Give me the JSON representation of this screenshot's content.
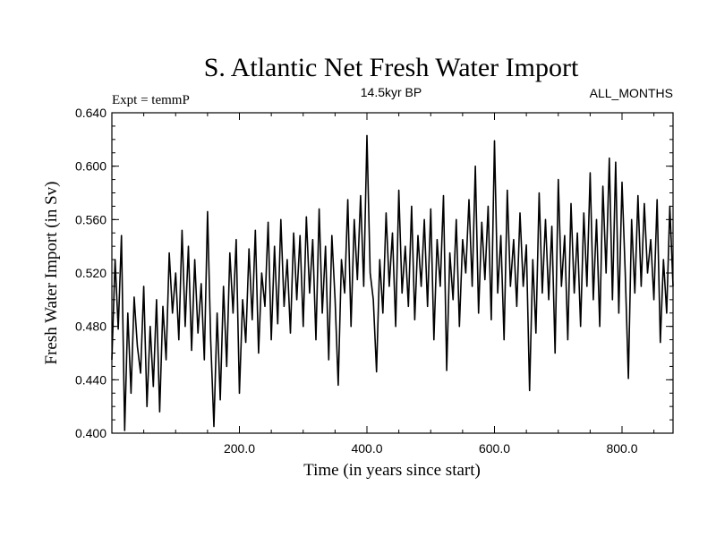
{
  "chart_data": {
    "type": "line",
    "title": "S. Atlantic Net Fresh Water Import",
    "subtitle_left": "Expt = temmP",
    "subtitle_center": "14.5kyr BP",
    "subtitle_right": "ALL_MONTHS",
    "xlabel": "Time (in years since start)",
    "ylabel": "Fresh Water Import (in Sv)",
    "xlim": [
      0,
      880
    ],
    "ylim": [
      0.4,
      0.64
    ],
    "x_ticks": [
      200,
      400,
      600,
      800
    ],
    "x_tick_labels": [
      "200.0",
      "400.0",
      "600.0",
      "800.0"
    ],
    "y_ticks": [
      0.4,
      0.44,
      0.48,
      0.52,
      0.56,
      0.6,
      0.64
    ],
    "y_tick_labels": [
      "0.400",
      "0.440",
      "0.480",
      "0.520",
      "0.560",
      "0.600",
      "0.640"
    ],
    "series": [
      {
        "name": "Net Fresh Water Import",
        "color": "#000000",
        "x": [
          0,
          5,
          10,
          15,
          20,
          25,
          30,
          35,
          40,
          45,
          50,
          55,
          60,
          65,
          70,
          75,
          80,
          85,
          90,
          95,
          100,
          105,
          110,
          115,
          120,
          125,
          130,
          135,
          140,
          145,
          150,
          155,
          160,
          165,
          170,
          175,
          180,
          185,
          190,
          195,
          200,
          205,
          210,
          215,
          220,
          225,
          230,
          235,
          240,
          245,
          250,
          255,
          260,
          265,
          270,
          275,
          280,
          285,
          290,
          295,
          300,
          305,
          310,
          315,
          320,
          325,
          330,
          335,
          340,
          345,
          350,
          355,
          360,
          365,
          370,
          375,
          380,
          385,
          390,
          395,
          400,
          405,
          410,
          415,
          420,
          425,
          430,
          435,
          440,
          445,
          450,
          455,
          460,
          465,
          470,
          475,
          480,
          485,
          490,
          495,
          500,
          505,
          510,
          515,
          520,
          525,
          530,
          535,
          540,
          545,
          550,
          555,
          560,
          565,
          570,
          575,
          580,
          585,
          590,
          595,
          600,
          605,
          610,
          615,
          620,
          625,
          630,
          635,
          640,
          645,
          650,
          655,
          660,
          665,
          670,
          675,
          680,
          685,
          690,
          695,
          700,
          705,
          710,
          715,
          720,
          725,
          730,
          735,
          740,
          745,
          750,
          755,
          760,
          765,
          770,
          775,
          780,
          785,
          790,
          795,
          800,
          805,
          810,
          815,
          820,
          825,
          830,
          835,
          840,
          845,
          850,
          855,
          860,
          865,
          870,
          875,
          880
        ],
        "y": [
          0.455,
          0.53,
          0.478,
          0.548,
          0.402,
          0.49,
          0.43,
          0.502,
          0.465,
          0.445,
          0.51,
          0.42,
          0.48,
          0.435,
          0.5,
          0.416,
          0.495,
          0.455,
          0.535,
          0.49,
          0.52,
          0.47,
          0.552,
          0.48,
          0.54,
          0.462,
          0.53,
          0.475,
          0.512,
          0.455,
          0.566,
          0.47,
          0.405,
          0.49,
          0.425,
          0.51,
          0.45,
          0.535,
          0.49,
          0.545,
          0.43,
          0.5,
          0.468,
          0.538,
          0.485,
          0.552,
          0.46,
          0.52,
          0.495,
          0.558,
          0.47,
          0.54,
          0.482,
          0.56,
          0.495,
          0.53,
          0.475,
          0.55,
          0.5,
          0.548,
          0.48,
          0.562,
          0.505,
          0.545,
          0.47,
          0.568,
          0.49,
          0.54,
          0.455,
          0.548,
          0.5,
          0.436,
          0.53,
          0.505,
          0.575,
          0.48,
          0.56,
          0.515,
          0.578,
          0.51,
          0.623,
          0.52,
          0.5,
          0.446,
          0.53,
          0.49,
          0.565,
          0.51,
          0.55,
          0.48,
          0.582,
          0.505,
          0.54,
          0.495,
          0.57,
          0.485,
          0.548,
          0.51,
          0.56,
          0.495,
          0.568,
          0.47,
          0.545,
          0.51,
          0.578,
          0.447,
          0.535,
          0.5,
          0.56,
          0.48,
          0.545,
          0.52,
          0.575,
          0.51,
          0.6,
          0.49,
          0.558,
          0.515,
          0.57,
          0.485,
          0.619,
          0.505,
          0.548,
          0.47,
          0.582,
          0.51,
          0.545,
          0.495,
          0.565,
          0.51,
          0.541,
          0.432,
          0.53,
          0.475,
          0.58,
          0.505,
          0.56,
          0.5,
          0.555,
          0.46,
          0.59,
          0.51,
          0.548,
          0.47,
          0.572,
          0.505,
          0.55,
          0.48,
          0.565,
          0.51,
          0.595,
          0.5,
          0.56,
          0.48,
          0.585,
          0.52,
          0.606,
          0.5,
          0.603,
          0.49,
          0.588,
          0.52,
          0.441,
          0.56,
          0.505,
          0.578,
          0.51,
          0.572,
          0.52,
          0.545,
          0.5,
          0.575,
          0.468,
          0.53,
          0.49,
          0.57,
          0.51
        ]
      }
    ]
  }
}
